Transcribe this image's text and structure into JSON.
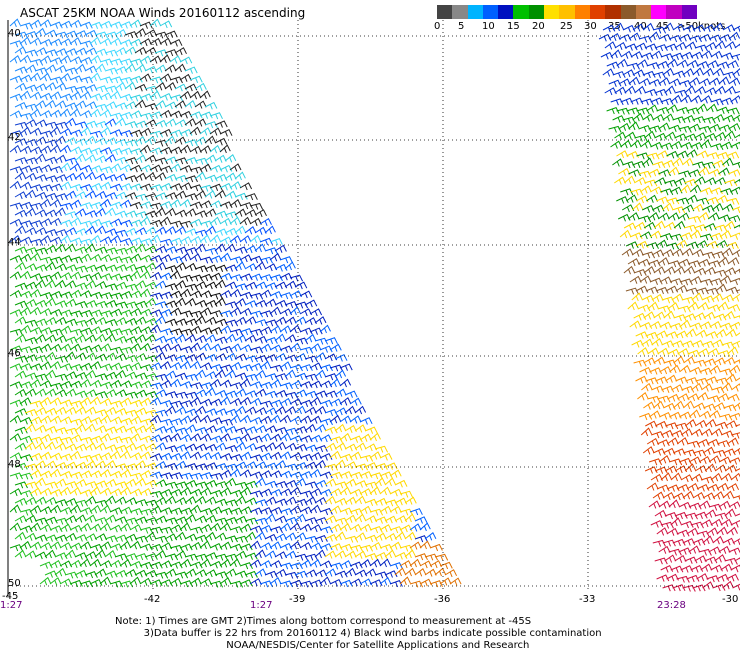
{
  "title": "ASCAT 25KM NOAA Winds 20160112 ascending",
  "scale": {
    "colors": [
      "#444444",
      "#888888",
      "#00b4ff",
      "#0060ff",
      "#0010c0",
      "#00c000",
      "#009000",
      "#ffe000",
      "#ffc000",
      "#ff8000",
      "#e04000",
      "#b03000",
      "#8b5a2b",
      "#c07840",
      "#ff00ff",
      "#c000c0",
      "#7000c0"
    ],
    "labels": [
      "0",
      "5",
      "10",
      "15",
      "20",
      "25",
      "30",
      "35",
      "40",
      "45",
      "50"
    ],
    "unit": "knots",
    "label_50": ">50"
  },
  "map": {
    "lat_labels": [
      "40",
      "42",
      "44",
      "46",
      "48",
      "50"
    ],
    "lon_labels": [
      "-45",
      "-42",
      "-39",
      "-36",
      "-33",
      "-30"
    ],
    "times": [
      "1:27",
      "1:27",
      "23:28"
    ]
  },
  "note": {
    "line1": "Note: 1) Times are GMT 2)Times along bottom correspond to measurement at -45S",
    "line2": "3)Data buffer is 22 hrs from 20160112 4) Black wind barbs indicate possible contamination",
    "line3": "NOAA/NESDIS/Center for Satellite Applications and Research"
  }
}
